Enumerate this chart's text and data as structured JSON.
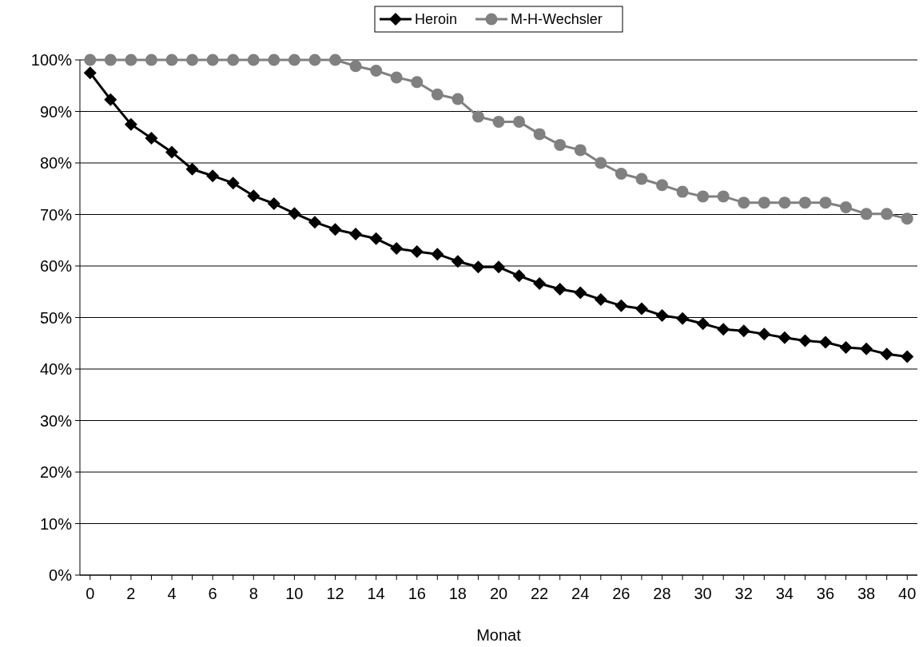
{
  "chart_data": {
    "type": "line",
    "xlabel": "Monat",
    "x": [
      0,
      1,
      2,
      3,
      4,
      5,
      6,
      7,
      8,
      9,
      10,
      11,
      12,
      13,
      14,
      15,
      16,
      17,
      18,
      19,
      20,
      21,
      22,
      23,
      24,
      25,
      26,
      27,
      28,
      29,
      30,
      31,
      32,
      33,
      34,
      35,
      36,
      37,
      38,
      39,
      40
    ],
    "series": [
      {
        "name": "Heroin",
        "color": "#000000",
        "marker": "diamond",
        "values": [
          97.5,
          92.3,
          87.5,
          84.8,
          82.1,
          78.8,
          77.5,
          76.1,
          73.6,
          72.1,
          70.2,
          68.5,
          67.1,
          66.2,
          65.3,
          63.4,
          62.8,
          62.3,
          60.9,
          59.8,
          59.8,
          58.1,
          56.6,
          55.5,
          54.8,
          53.5,
          52.3,
          51.7,
          50.4,
          49.8,
          48.8,
          47.7,
          47.4,
          46.8,
          46.1,
          45.5,
          45.2,
          44.2,
          43.9,
          42.9,
          42.4
        ]
      },
      {
        "name": "M-H-Wechsler",
        "color": "#808080",
        "marker": "circle",
        "values": [
          100,
          100,
          100,
          100,
          100,
          100,
          100,
          100,
          100,
          100,
          100,
          100,
          100,
          98.8,
          97.9,
          96.6,
          95.7,
          93.3,
          92.4,
          89.0,
          88.0,
          88.0,
          85.6,
          83.5,
          82.5,
          80.0,
          77.9,
          76.9,
          75.7,
          74.4,
          73.5,
          73.5,
          72.3,
          72.3,
          72.3,
          72.3,
          72.3,
          71.4,
          70.1,
          70.1,
          69.2
        ]
      }
    ],
    "xlim": [
      -0.5,
      40.5
    ],
    "xticks": [
      0,
      {
        "value": 1,
        "label": null
      },
      2,
      {
        "value": 3,
        "label": null
      },
      4,
      {
        "value": 5,
        "label": null
      },
      6,
      {
        "value": 7,
        "label": null
      },
      8,
      {
        "value": 9,
        "label": null
      },
      10,
      {
        "value": 11,
        "label": null
      },
      12,
      {
        "value": 13,
        "label": null
      },
      14,
      {
        "value": 15,
        "label": null
      },
      16,
      {
        "value": 17,
        "label": null
      },
      18,
      {
        "value": 19,
        "label": null
      },
      20,
      {
        "value": 21,
        "label": null
      },
      22,
      {
        "value": 23,
        "label": null
      },
      24,
      {
        "value": 25,
        "label": null
      },
      26,
      {
        "value": 27,
        "label": null
      },
      28,
      {
        "value": 29,
        "label": null
      },
      30,
      {
        "value": 31,
        "label": null
      },
      32,
      {
        "value": 33,
        "label": null
      },
      34,
      {
        "value": 35,
        "label": null
      },
      36,
      {
        "value": 37,
        "label": null
      },
      38,
      {
        "value": 39,
        "label": null
      },
      40
    ],
    "ylim": [
      0,
      100
    ],
    "yticks": [
      {
        "value": 0,
        "label": "0%"
      },
      {
        "value": 10,
        "label": "10%"
      },
      {
        "value": 20,
        "label": "20%"
      },
      {
        "value": 30,
        "label": "30%"
      },
      {
        "value": 40,
        "label": "40%"
      },
      {
        "value": 50,
        "label": "50%"
      },
      {
        "value": 60,
        "label": "60%"
      },
      {
        "value": 70,
        "label": "70%"
      },
      {
        "value": 80,
        "label": "80%"
      },
      {
        "value": 90,
        "label": "90%"
      },
      {
        "value": 100,
        "label": "100%"
      }
    ],
    "grid": "y",
    "legend": "top",
    "line_style": "solid"
  }
}
